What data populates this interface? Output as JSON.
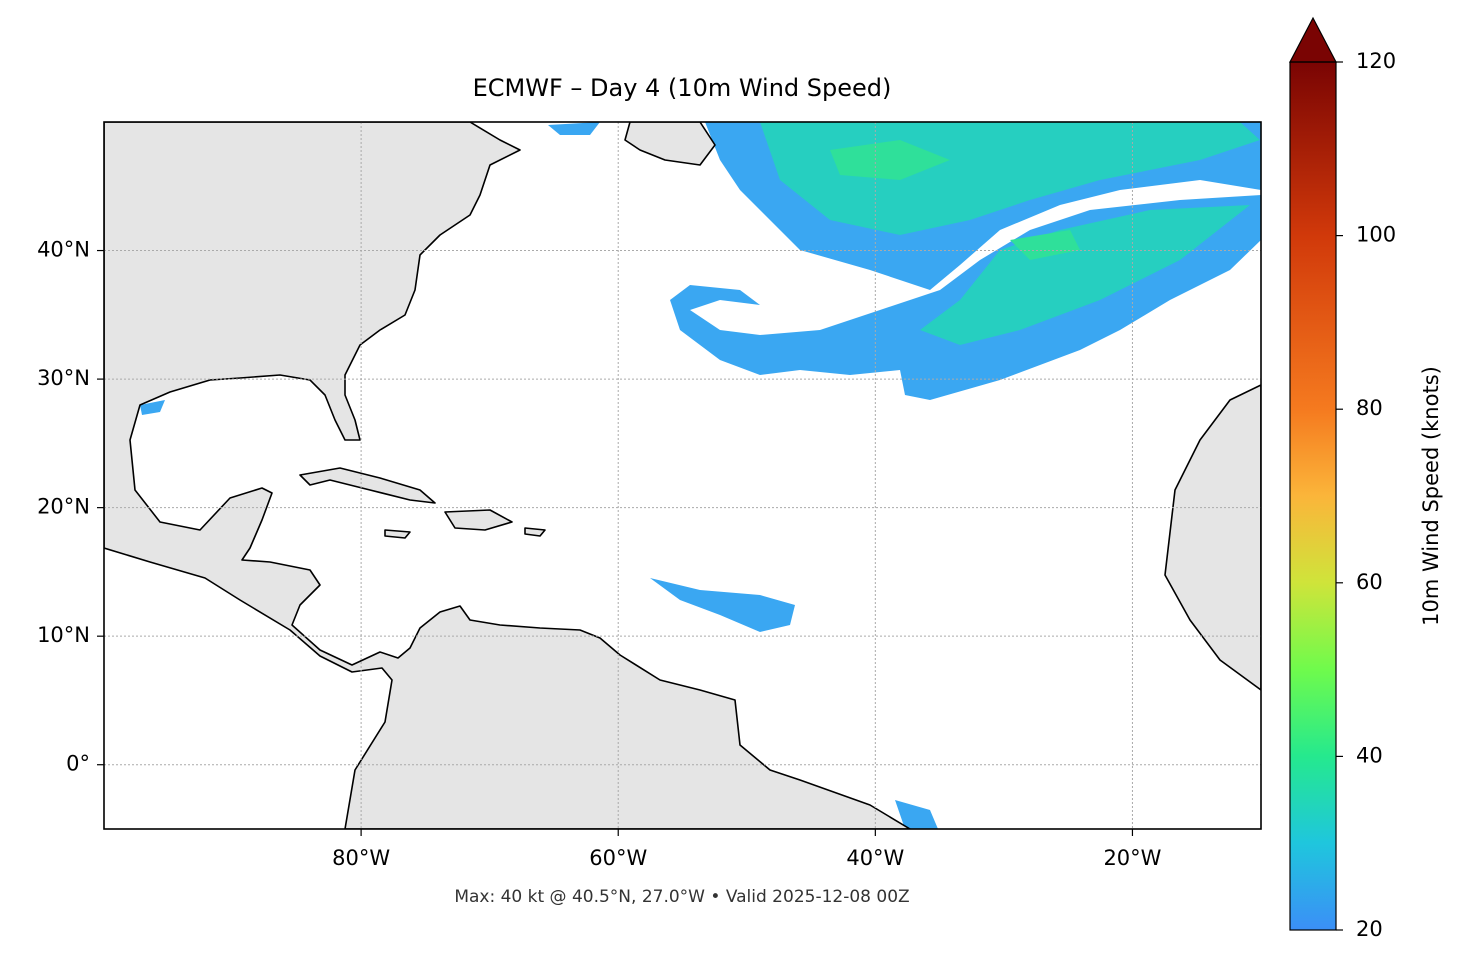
{
  "map": {
    "title": "ECMWF – Day 4 (10m Wind Speed)",
    "xlim": [
      -100,
      -10
    ],
    "ylim": [
      -5,
      50
    ],
    "xticks": [
      {
        "value": -80,
        "label": "80°W"
      },
      {
        "value": -60,
        "label": "60°W"
      },
      {
        "value": -40,
        "label": "40°W"
      },
      {
        "value": -20,
        "label": "20°W"
      }
    ],
    "yticks": [
      {
        "value": 0,
        "label": "0°"
      },
      {
        "value": 10,
        "label": "10°N"
      },
      {
        "value": 20,
        "label": "20°N"
      },
      {
        "value": 30,
        "label": "30°N"
      },
      {
        "value": 40,
        "label": "40°N"
      }
    ],
    "grid": true,
    "footer": "Max: 40 kt @ 40.5°N, 27.0°W • Valid 2025-12-08 00Z"
  },
  "colorbar": {
    "label": "10m Wind Speed (knots)",
    "lim": [
      20,
      120
    ],
    "ticks": [
      20,
      40,
      60,
      80,
      100,
      120
    ]
  }
}
